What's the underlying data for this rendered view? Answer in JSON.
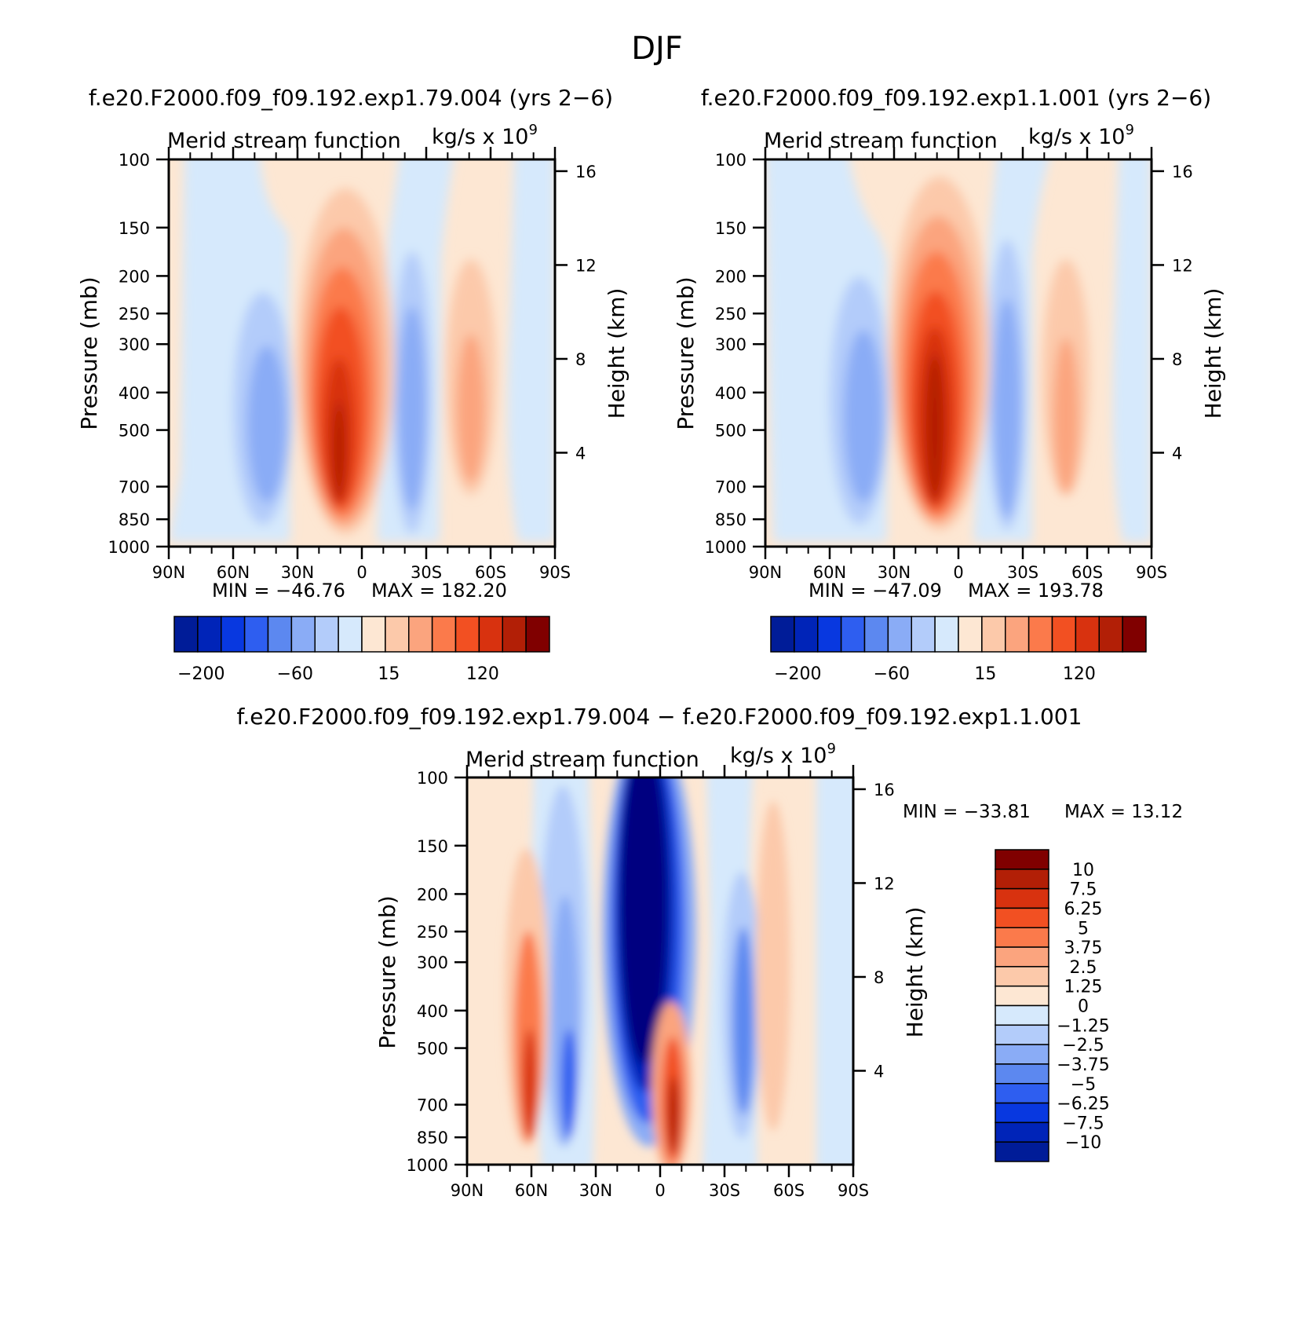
{
  "figure_title": "DJF",
  "colors": {
    "positive": [
      "#fde7d3",
      "#fcc9aa",
      "#fba47e",
      "#fb7a4b",
      "#f25022",
      "#d8320f",
      "#b21f06",
      "#800000"
    ],
    "negative": [
      "#d6e9fc",
      "#b3ccfa",
      "#8aacf6",
      "#5c88f0",
      "#2e5ef0",
      "#0838e0",
      "#0024b8",
      "#001c98",
      "#000080"
    ]
  },
  "chart_data": [
    {
      "id": "left",
      "type": "heatmap",
      "run_title": "f.e20.F2000.f09_f09.192.exp1.79.004 (yrs 2−6)",
      "subtitle": "Merid stream function",
      "units": "kg/s x 10",
      "units_exp": "9",
      "ylabel": "Pressure (mb)",
      "ylabel_right": "Height (km)",
      "x_ticks": [
        "90N",
        "60N",
        "30N",
        "0",
        "30S",
        "60S",
        "90S"
      ],
      "y_ticks": [
        "100",
        "150",
        "200",
        "250",
        "300",
        "400",
        "500",
        "700",
        "850",
        "1000"
      ],
      "y_right_ticks": [
        "16",
        "12",
        "8",
        "4"
      ],
      "min_label": "MIN = −46.76",
      "max_label": "MAX = 182.20",
      "colorbar_ticks": [
        "−200",
        "−60",
        "15",
        "120"
      ],
      "xlim": [
        90,
        -90
      ],
      "ylim": [
        1000,
        100
      ],
      "cells": [
        {
          "lat": 78,
          "plev": 700,
          "v": 15
        },
        {
          "lat": 55,
          "plev": 500,
          "v": -20
        },
        {
          "lat": 50,
          "plev": 500,
          "v": -40
        },
        {
          "lat": 45,
          "plev": 450,
          "v": -46.76
        },
        {
          "lat": 40,
          "plev": 400,
          "v": -30
        },
        {
          "lat": 15,
          "plev": 500,
          "v": 150
        },
        {
          "lat": 10,
          "plev": 500,
          "v": 182.2
        },
        {
          "lat": 5,
          "plev": 300,
          "v": 120
        },
        {
          "lat": -15,
          "plev": 500,
          "v": -30
        },
        {
          "lat": -25,
          "plev": 500,
          "v": -20
        },
        {
          "lat": -45,
          "plev": 450,
          "v": 40
        },
        {
          "lat": -70,
          "plev": 500,
          "v": -5
        }
      ]
    },
    {
      "id": "right",
      "type": "heatmap",
      "run_title": "f.e20.F2000.f09_f09.192.exp1.1.001 (yrs 2−6)",
      "subtitle": "Merid stream function",
      "units": "kg/s x 10",
      "units_exp": "9",
      "ylabel": "Pressure (mb)",
      "ylabel_right": "Height (km)",
      "x_ticks": [
        "90N",
        "60N",
        "30N",
        "0",
        "30S",
        "60S",
        "90S"
      ],
      "y_ticks": [
        "100",
        "150",
        "200",
        "250",
        "300",
        "400",
        "500",
        "700",
        "850",
        "1000"
      ],
      "y_right_ticks": [
        "16",
        "12",
        "8",
        "4"
      ],
      "min_label": "MIN = −47.09",
      "max_label": "MAX = 193.78",
      "colorbar_ticks": [
        "−200",
        "−60",
        "15",
        "120"
      ],
      "xlim": [
        90,
        -90
      ],
      "ylim": [
        1000,
        100
      ],
      "cells": [
        {
          "lat": 50,
          "plev": 500,
          "v": -47.09
        },
        {
          "lat": 10,
          "plev": 500,
          "v": 193.78
        },
        {
          "lat": -20,
          "plev": 500,
          "v": -40
        },
        {
          "lat": -45,
          "plev": 450,
          "v": 45
        },
        {
          "lat": -75,
          "plev": 500,
          "v": -5
        }
      ]
    },
    {
      "id": "diff",
      "type": "heatmap",
      "run_title": "f.e20.F2000.f09_f09.192.exp1.79.004 − f.e20.F2000.f09_f09.192.exp1.1.001",
      "subtitle": "Merid stream function",
      "units": "kg/s x 10",
      "units_exp": "9",
      "ylabel": "Pressure (mb)",
      "ylabel_right": "Height (km)",
      "x_ticks": [
        "90N",
        "60N",
        "30N",
        "0",
        "30S",
        "60S",
        "90S"
      ],
      "y_ticks": [
        "100",
        "150",
        "200",
        "250",
        "300",
        "400",
        "500",
        "700",
        "850",
        "1000"
      ],
      "y_right_ticks": [
        "16",
        "12",
        "8",
        "4"
      ],
      "min_label": "MIN = −33.81",
      "max_label": "MAX =  13.12",
      "colorbar_levels": [
        "10",
        "7.5",
        "6.25",
        "5",
        "3.75",
        "2.5",
        "1.25",
        "0",
        "−1.25",
        "−2.5",
        "−3.75",
        "−5",
        "−6.25",
        "−7.5",
        "−10"
      ],
      "xlim": [
        90,
        -90
      ],
      "ylim": [
        1000,
        100
      ],
      "cells": [
        {
          "lat": 60,
          "plev": 600,
          "v": 6
        },
        {
          "lat": 45,
          "plev": 600,
          "v": -7
        },
        {
          "lat": 10,
          "plev": 300,
          "v": -33.81
        },
        {
          "lat": -5,
          "plev": 800,
          "v": 13.12
        },
        {
          "lat": -40,
          "plev": 500,
          "v": -7
        },
        {
          "lat": -50,
          "plev": 300,
          "v": 3
        }
      ]
    }
  ]
}
